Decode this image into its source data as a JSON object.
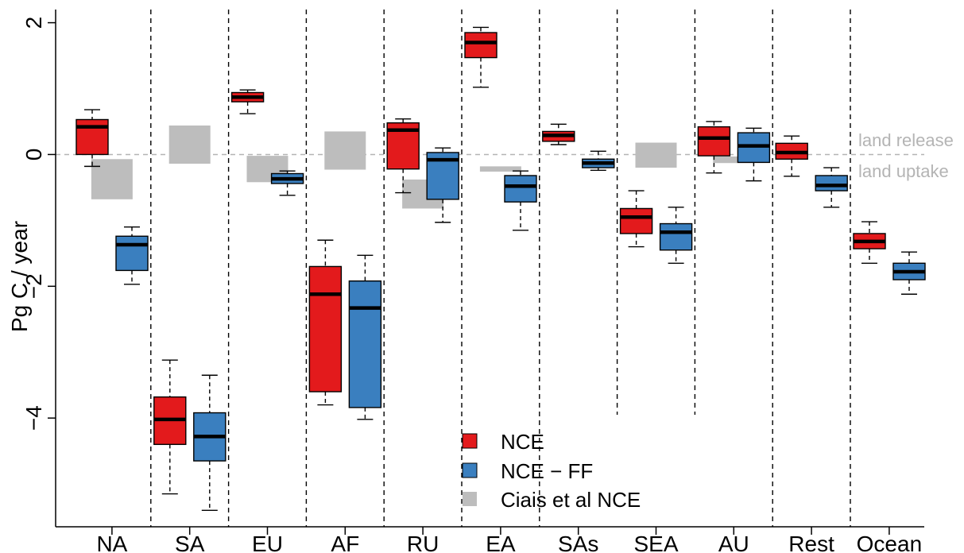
{
  "chart_data": {
    "type": "boxplot",
    "ylabel": "Pg C / year",
    "ylim": [
      -5.65,
      2.2
    ],
    "yticks": [
      2,
      0,
      -2,
      -4
    ],
    "ytick_labels": [
      "2",
      "0",
      "−2",
      "−4"
    ],
    "categories": [
      "NA",
      "SA",
      "EU",
      "AF",
      "RU",
      "EA",
      "SAs",
      "SEA",
      "AU",
      "Rest",
      "Ocean"
    ],
    "reference_line": 0,
    "annotations": {
      "above": "land release",
      "below": "land uptake"
    },
    "legend": {
      "placement": "bottom-center",
      "entries": [
        "NCE",
        "NCE − FF",
        "Ciais et al NCE"
      ]
    },
    "colors": {
      "NCE": "#e31a1c",
      "NCE_FF": "#3a7fbf",
      "Ciais": "#bdbdbd"
    },
    "series": [
      {
        "key": "NCE",
        "boxes": [
          {
            "min": -0.18,
            "q1": 0.0,
            "median": 0.42,
            "q3": 0.53,
            "max": 0.68
          },
          {
            "min": -5.15,
            "q1": -4.4,
            "median": -4.02,
            "q3": -3.68,
            "max": -3.12
          },
          {
            "min": 0.62,
            "q1": 0.8,
            "median": 0.87,
            "q3": 0.94,
            "max": 0.98
          },
          {
            "min": -3.8,
            "q1": -3.6,
            "median": -2.12,
            "q3": -1.7,
            "max": -1.3
          },
          {
            "min": -0.58,
            "q1": -0.22,
            "median": 0.37,
            "q3": 0.48,
            "max": 0.54
          },
          {
            "min": 1.02,
            "q1": 1.47,
            "median": 1.7,
            "q3": 1.85,
            "max": 1.93
          },
          {
            "min": 0.15,
            "q1": 0.2,
            "median": 0.29,
            "q3": 0.35,
            "max": 0.46
          },
          {
            "min": -1.4,
            "q1": -1.2,
            "median": -0.95,
            "q3": -0.82,
            "max": -0.55
          },
          {
            "min": -0.28,
            "q1": -0.02,
            "median": 0.25,
            "q3": 0.42,
            "max": 0.5
          },
          {
            "min": -0.33,
            "q1": -0.07,
            "median": 0.03,
            "q3": 0.17,
            "max": 0.28
          },
          {
            "min": -1.65,
            "q1": -1.43,
            "median": -1.32,
            "q3": -1.2,
            "max": -1.02
          }
        ]
      },
      {
        "key": "NCE_FF",
        "boxes": [
          {
            "min": -1.97,
            "q1": -1.76,
            "median": -1.37,
            "q3": -1.24,
            "max": -1.1
          },
          {
            "min": -5.4,
            "q1": -4.65,
            "median": -4.28,
            "q3": -3.92,
            "max": -3.35
          },
          {
            "min": -0.62,
            "q1": -0.44,
            "median": -0.37,
            "q3": -0.29,
            "max": -0.25
          },
          {
            "min": -4.02,
            "q1": -3.84,
            "median": -2.33,
            "q3": -1.92,
            "max": -1.53
          },
          {
            "min": -1.03,
            "q1": -0.68,
            "median": -0.08,
            "q3": 0.03,
            "max": 0.1
          },
          {
            "min": -1.15,
            "q1": -0.72,
            "median": -0.48,
            "q3": -0.32,
            "max": -0.25
          },
          {
            "min": -0.24,
            "q1": -0.2,
            "median": -0.13,
            "q3": -0.07,
            "max": 0.05
          },
          {
            "min": -1.65,
            "q1": -1.45,
            "median": -1.18,
            "q3": -1.05,
            "max": -0.8
          },
          {
            "min": -0.4,
            "q1": -0.12,
            "median": 0.13,
            "q3": 0.33,
            "max": 0.4
          },
          {
            "min": -0.8,
            "q1": -0.55,
            "median": -0.47,
            "q3": -0.32,
            "max": -0.2
          },
          {
            "min": -2.12,
            "q1": -1.9,
            "median": -1.78,
            "q3": -1.65,
            "max": -1.48
          }
        ]
      }
    ],
    "ciais_ranges": [
      {
        "low": -0.68,
        "high": -0.07
      },
      {
        "low": -0.14,
        "high": 0.44
      },
      {
        "low": -0.42,
        "high": -0.02
      },
      {
        "low": -0.23,
        "high": 0.35
      },
      {
        "low": -0.82,
        "high": -0.38
      },
      {
        "low": -0.26,
        "high": -0.18
      },
      null,
      {
        "low": -0.2,
        "high": 0.18
      },
      {
        "low": -0.13,
        "high": -0.03
      },
      null,
      null
    ]
  }
}
